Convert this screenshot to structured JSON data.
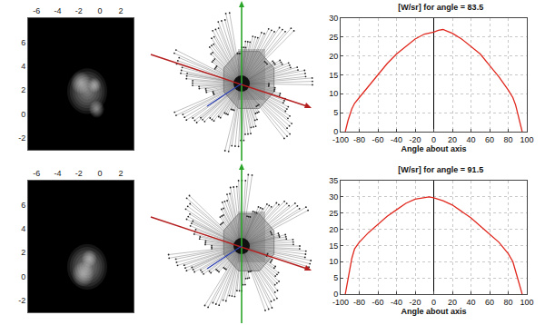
{
  "chart_data": [
    {
      "type": "image",
      "xlim": [
        -6.8,
        3.2
      ],
      "ylim": [
        -3,
        8
      ],
      "xticks": [
        -6,
        -4,
        -2,
        0,
        2
      ],
      "yticks": [
        -2,
        0,
        2,
        4,
        6
      ],
      "spots": [
        {
          "x": -1.2,
          "y": 1.9,
          "r": 1.9
        },
        {
          "x": -1.8,
          "y": 2.6,
          "r": 0.9
        },
        {
          "x": -0.3,
          "y": 0.4,
          "r": 0.7
        },
        {
          "x": -0.5,
          "y": 2.4,
          "r": 0.6
        }
      ]
    },
    {
      "type": "line",
      "title": "[W/sr] for angle = 83.5",
      "xlabel": "Angle about axis",
      "x": [
        -95,
        -92,
        -88,
        -85,
        -80,
        -70,
        -60,
        -50,
        -40,
        -30,
        -20,
        -10,
        0,
        5,
        10,
        15,
        20,
        30,
        40,
        50,
        60,
        70,
        80,
        85,
        88,
        92,
        95
      ],
      "values": [
        0,
        3,
        6,
        7.5,
        9,
        12,
        15,
        18,
        20.5,
        22.5,
        24.5,
        25.8,
        26.3,
        26.8,
        27,
        26.5,
        26,
        24.5,
        22.5,
        20.5,
        17.5,
        14.5,
        11,
        9,
        7,
        3,
        0
      ],
      "color": "#e0281e",
      "xlim": [
        -100,
        100
      ],
      "xticks": [
        -100,
        -80,
        -60,
        -40,
        -20,
        0,
        20,
        40,
        60,
        80,
        100
      ],
      "ylim": [
        0,
        30
      ],
      "yticks": [
        0,
        5,
        10,
        15,
        20,
        25,
        30
      ],
      "grid": true
    },
    {
      "type": "image",
      "xlim": [
        -6.8,
        3.2
      ],
      "ylim": [
        -3,
        8
      ],
      "xticks": [
        -6,
        -4,
        -2,
        0,
        2
      ],
      "yticks": [
        -2,
        0,
        2,
        4,
        6
      ],
      "spots": [
        {
          "x": -1.2,
          "y": 0.8,
          "r": 1.9
        },
        {
          "x": -1.6,
          "y": 0.2,
          "r": 1.0
        },
        {
          "x": -1.0,
          "y": 1.5,
          "r": 0.7
        }
      ]
    },
    {
      "type": "line",
      "title": "[W/sr] for angle = 91.5",
      "xlabel": "Angle about axis",
      "x": [
        -95,
        -92,
        -88,
        -85,
        -80,
        -70,
        -60,
        -50,
        -40,
        -30,
        -20,
        -10,
        -5,
        0,
        10,
        20,
        30,
        40,
        50,
        60,
        70,
        80,
        85,
        88,
        92,
        95
      ],
      "values": [
        0,
        5,
        11,
        14,
        16,
        19,
        21.5,
        24,
        26,
        28,
        29.3,
        29.9,
        30,
        29.7,
        28.8,
        27.5,
        25.5,
        23.5,
        21,
        18.5,
        16,
        12.5,
        10,
        7,
        3,
        0
      ],
      "color": "#e0281e",
      "xlim": [
        -100,
        100
      ],
      "xticks": [
        -100,
        -80,
        -60,
        -40,
        -20,
        0,
        20,
        40,
        60,
        80,
        100
      ],
      "ylim": [
        0,
        35
      ],
      "yticks": [
        0,
        5,
        10,
        15,
        20,
        25,
        30,
        35
      ],
      "grid": true
    }
  ]
}
